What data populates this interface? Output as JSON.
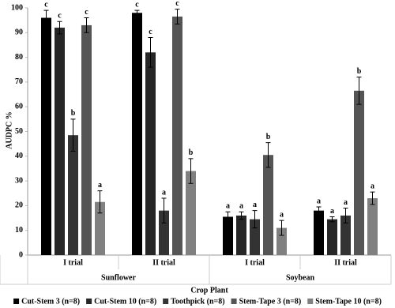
{
  "chart_data": {
    "type": "bar",
    "y_label": "AUDPC %",
    "x_label": "Crop Plant",
    "categories": [
      "I trial",
      "II trial",
      "I trial",
      "II trial"
    ],
    "groups": [
      "Sunflower",
      "Soybean"
    ],
    "ylim": [
      0,
      100
    ],
    "yticks": [
      0,
      10,
      20,
      30,
      40,
      50,
      60,
      70,
      80,
      90,
      100
    ],
    "grid": false,
    "series": [
      {
        "name": "Cut-Stem 3 (n=8)",
        "color": "#000000",
        "values": [
          96,
          98,
          15.5,
          18
        ],
        "errors": [
          3,
          1,
          2,
          1.5
        ],
        "labels": [
          "c",
          "c",
          "a",
          "a"
        ]
      },
      {
        "name": "Cut-Stem 10 (n=8)",
        "color": "#262626",
        "values": [
          92,
          82,
          16,
          14.5
        ],
        "errors": [
          2.5,
          6,
          1.5,
          1
        ],
        "labels": [
          "c",
          "c",
          "a",
          "a"
        ]
      },
      {
        "name": "Toothpick (n=8)",
        "color": "#333333",
        "values": [
          48.5,
          18,
          14.5,
          16
        ],
        "errors": [
          6.5,
          5,
          3.5,
          3
        ],
        "labels": [
          "b",
          "a",
          "a",
          "a"
        ]
      },
      {
        "name": "Stem-Tape 3 (n=8)",
        "color": "#555555",
        "values": [
          93,
          96.5,
          40.5,
          66.5
        ],
        "errors": [
          3,
          3,
          5,
          5.5
        ],
        "labels": [
          "c",
          "c",
          "b",
          "b"
        ]
      },
      {
        "name": "Stem-Tape 10 (n=8)",
        "color": "#808080",
        "values": [
          21.5,
          34,
          11,
          23
        ],
        "errors": [
          4.5,
          5,
          3,
          2.5
        ],
        "labels": [
          "a",
          "b",
          "a",
          "a"
        ]
      }
    ]
  }
}
